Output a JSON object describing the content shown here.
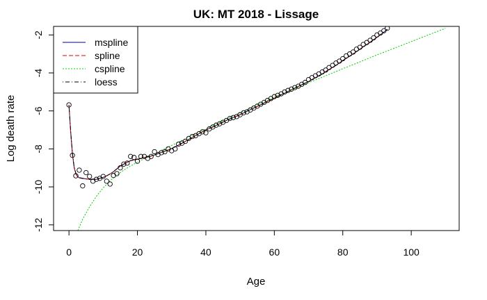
{
  "chart_data": {
    "type": "line",
    "title": "UK: MT 2018 - Lissage",
    "xlabel": "Age",
    "ylabel": "Log death rate",
    "xlim": [
      -4.5,
      114
    ],
    "ylim": [
      -12.3,
      -1.55
    ],
    "x_ticks": [
      0,
      20,
      40,
      60,
      80,
      100
    ],
    "y_ticks": [
      -12,
      -10,
      -8,
      -6,
      -4,
      -2
    ],
    "legend_position": "top-left",
    "grid": false,
    "points": {
      "x": [
        0,
        1,
        2,
        3,
        4,
        5,
        6,
        7,
        8,
        9,
        10,
        11,
        12,
        13,
        14,
        15,
        16,
        17,
        18,
        19,
        20,
        21,
        22,
        23,
        24,
        25,
        26,
        27,
        28,
        29,
        30,
        31,
        32,
        33,
        34,
        35,
        36,
        37,
        38,
        39,
        40,
        41,
        42,
        43,
        44,
        45,
        46,
        47,
        48,
        49,
        50,
        51,
        52,
        53,
        54,
        55,
        56,
        57,
        58,
        59,
        60,
        61,
        62,
        63,
        64,
        65,
        66,
        67,
        68,
        69,
        70,
        71,
        72,
        73,
        74,
        75,
        76,
        77,
        78,
        79,
        80,
        81,
        82,
        83,
        84,
        85,
        86,
        87,
        88,
        89,
        90,
        91,
        92,
        93
      ],
      "y": [
        -5.68,
        -8.34,
        -9.42,
        -9.12,
        -9.95,
        -9.25,
        -9.45,
        -9.7,
        -9.6,
        -9.55,
        -9.45,
        -9.7,
        -9.85,
        -9.4,
        -9.3,
        -9.0,
        -8.8,
        -8.75,
        -8.4,
        -8.45,
        -8.65,
        -8.4,
        -8.4,
        -8.5,
        -8.4,
        -8.15,
        -8.3,
        -8.2,
        -8.15,
        -8.0,
        -8.1,
        -8.0,
        -7.75,
        -7.7,
        -7.6,
        -7.45,
        -7.35,
        -7.3,
        -7.2,
        -7.1,
        -7.15,
        -6.95,
        -6.85,
        -6.75,
        -6.68,
        -6.6,
        -6.5,
        -6.4,
        -6.35,
        -6.3,
        -6.2,
        -6.1,
        -6.05,
        -5.95,
        -5.85,
        -5.75,
        -5.65,
        -5.55,
        -5.45,
        -5.35,
        -5.25,
        -5.18,
        -5.1,
        -5.0,
        -4.92,
        -4.85,
        -4.77,
        -4.7,
        -4.6,
        -4.5,
        -4.35,
        -4.25,
        -4.15,
        -4.05,
        -3.95,
        -3.85,
        -3.72,
        -3.6,
        -3.48,
        -3.38,
        -3.25,
        -3.1,
        -3.0,
        -2.9,
        -2.75,
        -2.65,
        -2.5,
        -2.4,
        -2.28,
        -2.15,
        -2.0,
        -1.9,
        -1.78,
        -1.65
      ]
    },
    "series": [
      {
        "name": "mspline",
        "color": "#000080",
        "dash": "solid",
        "x": [
          0,
          0.5,
          1,
          1.5,
          2,
          2.5,
          3,
          4,
          5,
          6,
          7,
          8,
          9,
          10,
          11,
          12,
          13,
          14,
          15,
          16,
          17,
          18,
          19,
          20,
          21,
          22,
          23,
          24,
          25,
          26,
          27,
          28,
          29,
          30,
          32,
          34,
          36,
          38,
          40,
          42,
          44,
          46,
          48,
          50,
          52,
          54,
          56,
          58,
          60,
          62,
          64,
          66,
          68,
          70,
          72,
          74,
          76,
          78,
          80,
          82,
          84,
          86,
          88,
          90,
          92,
          93
        ],
        "y": [
          -5.68,
          -7.1,
          -8.25,
          -8.95,
          -9.3,
          -9.45,
          -9.52,
          -9.55,
          -9.58,
          -9.6,
          -9.6,
          -9.6,
          -9.55,
          -9.5,
          -9.42,
          -9.32,
          -9.2,
          -9.05,
          -8.9,
          -8.8,
          -8.7,
          -8.62,
          -8.58,
          -8.55,
          -8.5,
          -8.45,
          -8.42,
          -8.38,
          -8.32,
          -8.25,
          -8.18,
          -8.12,
          -8.05,
          -7.98,
          -7.8,
          -7.6,
          -7.4,
          -7.2,
          -7.0,
          -6.85,
          -6.68,
          -6.5,
          -6.35,
          -6.2,
          -6.02,
          -5.85,
          -5.68,
          -5.5,
          -5.33,
          -5.15,
          -4.98,
          -4.8,
          -4.62,
          -4.45,
          -4.25,
          -4.05,
          -3.82,
          -3.6,
          -3.35,
          -3.12,
          -2.88,
          -2.62,
          -2.38,
          -2.12,
          -1.85,
          -1.7
        ]
      },
      {
        "name": "spline",
        "color": "#dd0000",
        "dash": "dashed",
        "x": [
          0,
          0.5,
          1,
          1.5,
          2,
          2.5,
          3,
          4,
          5,
          6,
          7,
          8,
          9,
          10,
          11,
          12,
          13,
          14,
          15,
          16,
          17,
          18,
          19,
          20,
          21,
          22,
          23,
          24,
          25,
          26,
          27,
          28,
          29,
          30,
          32,
          34,
          36,
          38,
          40,
          42,
          44,
          46,
          48,
          50,
          52,
          54,
          56,
          58,
          60,
          62,
          64,
          66,
          68,
          70,
          72,
          74,
          76,
          78,
          80,
          82,
          84,
          86,
          88,
          90,
          92,
          93
        ],
        "y": [
          -5.68,
          -7.15,
          -8.3,
          -8.98,
          -9.32,
          -9.46,
          -9.53,
          -9.56,
          -9.58,
          -9.6,
          -9.6,
          -9.6,
          -9.55,
          -9.5,
          -9.42,
          -9.32,
          -9.2,
          -9.05,
          -8.9,
          -8.8,
          -8.7,
          -8.62,
          -8.58,
          -8.55,
          -8.5,
          -8.45,
          -8.42,
          -8.38,
          -8.32,
          -8.25,
          -8.18,
          -8.12,
          -8.05,
          -7.98,
          -7.8,
          -7.6,
          -7.4,
          -7.2,
          -7.0,
          -6.85,
          -6.68,
          -6.5,
          -6.35,
          -6.2,
          -6.02,
          -5.85,
          -5.68,
          -5.5,
          -5.33,
          -5.15,
          -4.98,
          -4.8,
          -4.62,
          -4.45,
          -4.25,
          -4.05,
          -3.82,
          -3.6,
          -3.35,
          -3.12,
          -2.88,
          -2.62,
          -2.38,
          -2.12,
          -1.85,
          -1.7
        ]
      },
      {
        "name": "cspline",
        "color": "#00cc00",
        "dash": "dotted",
        "x": [
          2.6,
          4,
          6,
          8,
          10,
          12,
          14,
          16,
          18,
          20,
          25,
          30,
          35,
          40,
          45,
          50,
          55,
          60,
          65,
          70,
          75,
          80,
          85,
          90,
          95,
          100,
          105,
          110
        ],
        "y": [
          -12.3,
          -11.7,
          -11.05,
          -10.5,
          -10.05,
          -9.68,
          -9.38,
          -9.12,
          -8.9,
          -8.7,
          -8.25,
          -7.82,
          -7.38,
          -6.95,
          -6.52,
          -6.1,
          -5.68,
          -5.28,
          -4.9,
          -4.52,
          -4.15,
          -3.78,
          -3.42,
          -3.05,
          -2.7,
          -2.35,
          -2.0,
          -1.65
        ]
      },
      {
        "name": "loess",
        "color": "#000000",
        "dash": "dotdash",
        "x": [
          0,
          0.5,
          1,
          1.5,
          2,
          2.5,
          3,
          4,
          5,
          6,
          7,
          8,
          9,
          10,
          11,
          12,
          13,
          14,
          15,
          16,
          17,
          18,
          19,
          20,
          21,
          22,
          23,
          24,
          25,
          26,
          27,
          28,
          29,
          30,
          32,
          34,
          36,
          38,
          40,
          42,
          44,
          46,
          48,
          50,
          52,
          54,
          56,
          58,
          60,
          62,
          64,
          66,
          68,
          70,
          72,
          74,
          76,
          78,
          80,
          82,
          84,
          86,
          88,
          90,
          92,
          93
        ],
        "y": [
          -5.68,
          -7.08,
          -8.22,
          -8.93,
          -9.28,
          -9.44,
          -9.51,
          -9.55,
          -9.58,
          -9.6,
          -9.6,
          -9.6,
          -9.55,
          -9.5,
          -9.42,
          -9.32,
          -9.2,
          -9.05,
          -8.9,
          -8.8,
          -8.7,
          -8.62,
          -8.58,
          -8.55,
          -8.5,
          -8.45,
          -8.42,
          -8.38,
          -8.32,
          -8.25,
          -8.18,
          -8.12,
          -8.05,
          -7.98,
          -7.8,
          -7.6,
          -7.4,
          -7.2,
          -7.0,
          -6.85,
          -6.68,
          -6.5,
          -6.35,
          -6.2,
          -6.02,
          -5.85,
          -5.68,
          -5.5,
          -5.33,
          -5.15,
          -4.98,
          -4.8,
          -4.62,
          -4.45,
          -4.25,
          -4.05,
          -3.82,
          -3.6,
          -3.35,
          -3.12,
          -2.88,
          -2.62,
          -2.38,
          -2.12,
          -1.85,
          -1.7
        ]
      }
    ]
  }
}
